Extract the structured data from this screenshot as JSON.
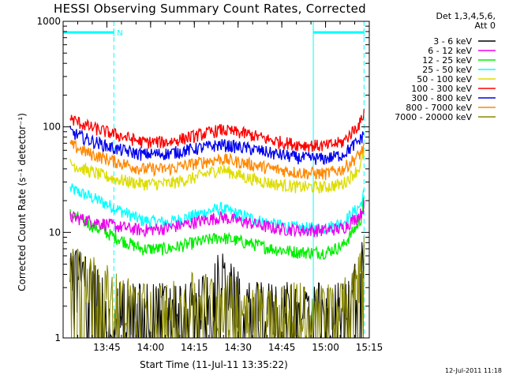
{
  "chart_data": {
    "type": "line",
    "title": "HESSI Observing Summary Count Rates, Corrected",
    "xlabel": "Start Time (11-Jul-11 13:35:22)",
    "ylabel": "Corrected Count Rate (s⁻¹ detector⁻¹)",
    "y_scale": "log",
    "ylim": [
      1,
      1000
    ],
    "xlim": [
      13.5,
      15.25
    ],
    "x_unit": "hours UT",
    "x_tick_labels": [
      "13:45",
      "14:00",
      "14:15",
      "14:30",
      "14:45",
      "15:00",
      "15:15"
    ],
    "y_tick_labels": [
      "1",
      "10",
      "100",
      "1000"
    ],
    "legend_header": [
      "Det 1,3,4,5,6,",
      "Att 0"
    ],
    "legend_position": "right",
    "night_marker": "N",
    "timestamp": "12-Jul-2011 11:18",
    "spacecraft_night_intervals": [
      [
        13.5,
        13.79
      ],
      [
        14.93,
        15.22
      ]
    ],
    "series": [
      {
        "name": "3 - 6 keV",
        "color": "#000000",
        "x": [
          13.54,
          13.65,
          13.8,
          13.95,
          14.1,
          14.25,
          14.4,
          14.55,
          14.7,
          14.85,
          15.0,
          15.1,
          15.2,
          15.22
        ],
        "values": [
          4.5,
          3.5,
          2.0,
          2.0,
          2.0,
          2.0,
          4.0,
          2.0,
          2.0,
          2.0,
          2.0,
          2.0,
          5.0,
          6.0
        ]
      },
      {
        "name": "6 - 12 keV",
        "color": "#ee00ee",
        "x": [
          13.54,
          13.65,
          13.8,
          13.95,
          14.1,
          14.25,
          14.4,
          14.55,
          14.7,
          14.85,
          15.0,
          15.1,
          15.2,
          15.22
        ],
        "values": [
          14,
          13,
          11.5,
          10.5,
          11,
          12.5,
          14,
          12.5,
          11,
          10.5,
          10.5,
          11,
          15,
          18
        ]
      },
      {
        "name": "12 - 25 keV",
        "color": "#00ee00",
        "x": [
          13.54,
          13.65,
          13.8,
          13.95,
          14.1,
          14.25,
          14.4,
          14.55,
          14.7,
          14.85,
          15.0,
          15.1,
          15.2,
          15.22
        ],
        "values": [
          15,
          12,
          9,
          7,
          7,
          8,
          9,
          8,
          7,
          6.5,
          6.5,
          7.5,
          13,
          20
        ]
      },
      {
        "name": "25 - 50 keV",
        "color": "#00ffff",
        "x": [
          13.54,
          13.65,
          13.8,
          13.95,
          14.1,
          14.25,
          14.4,
          14.55,
          14.7,
          14.85,
          15.0,
          15.1,
          15.2,
          15.22
        ],
        "values": [
          26,
          22,
          17,
          13,
          12.5,
          14.5,
          17,
          14,
          12,
          11,
          11,
          12.5,
          18,
          24
        ]
      },
      {
        "name": "50 - 100 keV",
        "color": "#dddd00",
        "x": [
          13.54,
          13.65,
          13.8,
          13.95,
          14.1,
          14.25,
          14.4,
          14.55,
          14.7,
          14.85,
          15.0,
          15.1,
          15.2,
          15.22
        ],
        "values": [
          45,
          38,
          32,
          29,
          29,
          33,
          40,
          33,
          29,
          27,
          27,
          29,
          42,
          58
        ]
      },
      {
        "name": "100 - 300 keV",
        "color": "#ff0000",
        "x": [
          13.54,
          13.65,
          13.8,
          13.95,
          14.1,
          14.25,
          14.4,
          14.55,
          14.7,
          14.85,
          15.0,
          15.1,
          15.2,
          15.22
        ],
        "values": [
          120,
          100,
          85,
          72,
          72,
          82,
          94,
          86,
          74,
          68,
          66,
          72,
          110,
          140
        ]
      },
      {
        "name": "300 - 800 keV",
        "color": "#0000ee",
        "x": [
          13.54,
          13.65,
          13.8,
          13.95,
          14.1,
          14.25,
          14.4,
          14.55,
          14.7,
          14.85,
          15.0,
          15.1,
          15.2,
          15.22
        ],
        "values": [
          90,
          75,
          62,
          55,
          56,
          62,
          68,
          63,
          56,
          51,
          50,
          55,
          76,
          88
        ]
      },
      {
        "name": "800 - 7000 keV",
        "color": "#ff8800",
        "x": [
          13.54,
          13.65,
          13.8,
          13.95,
          14.1,
          14.25,
          14.4,
          14.55,
          14.7,
          14.85,
          15.0,
          15.1,
          15.2,
          15.22
        ],
        "values": [
          68,
          56,
          47,
          40,
          40,
          45,
          50,
          45,
          40,
          37,
          36,
          40,
          56,
          66
        ]
      },
      {
        "name": "7000 - 20000 keV",
        "color": "#888800",
        "x": [
          13.54,
          13.65,
          13.8,
          13.95,
          14.1,
          14.25,
          14.4,
          14.55,
          14.7,
          14.85,
          15.0,
          15.1,
          15.2,
          15.22
        ],
        "values": [
          5.0,
          4.0,
          2.5,
          2.0,
          2.0,
          2.5,
          2.5,
          2.0,
          2.0,
          2.0,
          2.0,
          2.0,
          5.0,
          6.0
        ]
      }
    ]
  }
}
